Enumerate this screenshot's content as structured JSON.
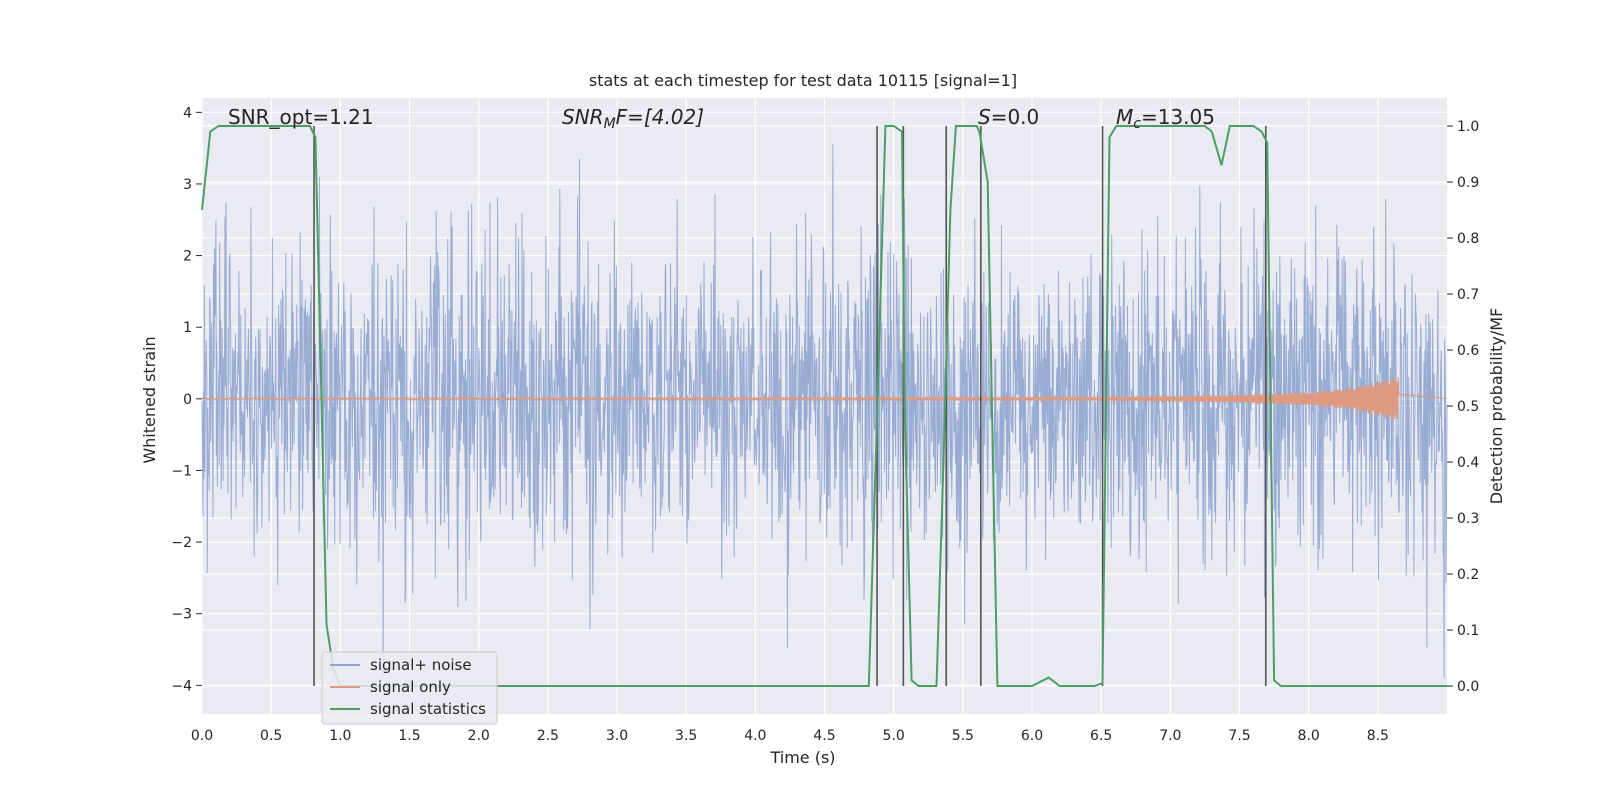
{
  "chart_data": {
    "type": "line",
    "title": "stats at each timestep for test data 10115 [signal=1]",
    "xlabel": "Time (s)",
    "ylabel_left": "Whitened strain",
    "ylabel_right": "Detection probability/MF",
    "xlim": [
      0,
      9.0
    ],
    "ylim_left": [
      -4.4,
      4.2
    ],
    "ylim_right": [
      -0.05,
      1.05
    ],
    "xticks": [
      "0.0",
      "0.5",
      "1.0",
      "1.5",
      "2.0",
      "2.5",
      "3.0",
      "3.5",
      "4.0",
      "4.5",
      "5.0",
      "5.5",
      "6.0",
      "6.5",
      "7.0",
      "7.5",
      "8.0",
      "8.5"
    ],
    "yticks_left": [
      "4",
      "3",
      "2",
      "1",
      "0",
      "−1",
      "−2",
      "−3",
      "−4"
    ],
    "yticks_right": [
      "1.0",
      "0.9",
      "0.8",
      "0.7",
      "0.6",
      "0.5",
      "0.4",
      "0.3",
      "0.2",
      "0.1",
      "0.0"
    ],
    "grid": true,
    "legend_placement": "lower-left",
    "annotations": {
      "snr_opt": "SNR_opt=1.21",
      "snr_mf_main": "SNR",
      "snr_mf_sub": "M",
      "snr_mf_tail": "F=[4.02]",
      "s_main": "S",
      "s_tail": "=0.0",
      "mc_main": "M",
      "mc_sub": "c",
      "mc_tail": "=13.05"
    },
    "series": [
      {
        "name": "signal+ noise",
        "color": "#8fa5cf",
        "description_values": "noise-dominated whitened strain fluctuating mostly between -2.5 and 2.5 with peaks near ±3.8"
      },
      {
        "name": "signal only",
        "color": "#dd9a80",
        "envelope": {
          "x": [
            0,
            6.5,
            7.5,
            8.0,
            8.3,
            8.5,
            8.65
          ],
          "amp": [
            0.01,
            0.02,
            0.05,
            0.09,
            0.15,
            0.24,
            0.32
          ]
        }
      },
      {
        "name": "signal statistics",
        "color": "#4c9f63",
        "x": [
          0.0,
          0.06,
          0.12,
          0.2,
          0.5,
          0.78,
          0.82,
          0.86,
          0.9,
          0.95,
          1.0,
          1.5,
          2.0,
          3.0,
          4.0,
          4.5,
          4.82,
          4.87,
          4.94,
          5.0,
          5.06,
          5.08,
          5.13,
          5.18,
          5.31,
          5.36,
          5.41,
          5.45,
          5.48,
          5.55,
          5.6,
          5.62,
          5.68,
          5.71,
          5.75,
          5.9,
          6.0,
          6.12,
          6.2,
          6.3,
          6.45,
          6.51,
          6.56,
          6.61,
          6.7,
          7.0,
          7.25,
          7.3,
          7.37,
          7.43,
          7.6,
          7.66,
          7.7,
          7.75,
          7.8,
          8.0,
          8.5,
          9.0
        ],
        "y": [
          0.85,
          0.99,
          1.0,
          1.0,
          1.0,
          1.0,
          0.98,
          0.55,
          0.11,
          0.03,
          0.0,
          0.0,
          0.0,
          0.0,
          0.0,
          0.0,
          0.0,
          0.4,
          1.0,
          1.0,
          0.99,
          0.5,
          0.01,
          0.0,
          0.0,
          0.4,
          0.85,
          1.0,
          1.0,
          1.0,
          1.0,
          0.99,
          0.9,
          0.5,
          0.0,
          0.0,
          0.0,
          0.015,
          0.0,
          0.0,
          0.0,
          0.005,
          0.98,
          1.0,
          1.0,
          1.0,
          1.0,
          0.99,
          0.93,
          1.0,
          1.0,
          0.99,
          0.97,
          0.01,
          0.0,
          0.0,
          0.0,
          0.0
        ]
      }
    ],
    "vertical_markers": [
      0.81,
      4.88,
      5.07,
      5.38,
      5.63,
      6.51,
      7.69
    ]
  }
}
